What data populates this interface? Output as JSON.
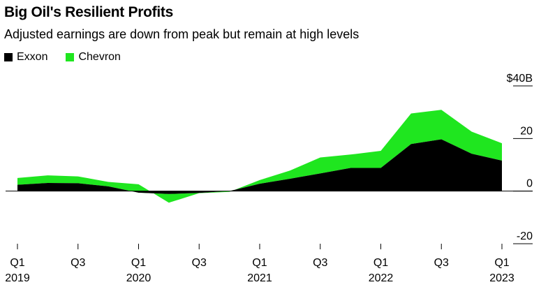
{
  "title": "Big Oil's Resilient Profits",
  "subtitle": "Adjusted earnings are down from peak but remain at high levels",
  "colors": {
    "exxon": "#000000",
    "chevron": "#1fe61f",
    "axis": "#000000",
    "grid": "#000000"
  },
  "chart_data": {
    "type": "area",
    "stacked": true,
    "title": "Big Oil's Resilient Profits",
    "subtitle": "Adjusted earnings are down from peak but remain at high levels",
    "x": [
      "Q1 2019",
      "Q2 2019",
      "Q3 2019",
      "Q4 2019",
      "Q1 2020",
      "Q2 2020",
      "Q3 2020",
      "Q4 2020",
      "Q1 2021",
      "Q2 2021",
      "Q3 2021",
      "Q4 2021",
      "Q1 2022",
      "Q2 2022",
      "Q3 2022",
      "Q4 2022",
      "Q1 2023"
    ],
    "series": [
      {
        "name": "Exxon",
        "values": [
          2.4,
          3.1,
          3.0,
          1.8,
          -0.6,
          -1.1,
          -0.7,
          0.0,
          2.8,
          4.7,
          6.7,
          8.8,
          8.8,
          17.9,
          19.7,
          14.2,
          11.6
        ]
      },
      {
        "name": "Chevron",
        "values": [
          2.6,
          2.9,
          2.6,
          1.7,
          3.2,
          -3.3,
          -0.1,
          -0.3,
          1.4,
          3.1,
          6.1,
          5.1,
          6.5,
          11.6,
          11.2,
          8.4,
          6.6
        ]
      }
    ],
    "y_ticks": [
      {
        "value": 40,
        "label": "$40B"
      },
      {
        "value": 20,
        "label": "20"
      },
      {
        "value": 0,
        "label": "0"
      },
      {
        "value": -20,
        "label": "-20"
      }
    ],
    "x_tick_labels": [
      {
        "index": 0,
        "quarter": "Q1",
        "year": "2019"
      },
      {
        "index": 2,
        "quarter": "Q3",
        "year": ""
      },
      {
        "index": 4,
        "quarter": "Q1",
        "year": "2020"
      },
      {
        "index": 6,
        "quarter": "Q3",
        "year": ""
      },
      {
        "index": 8,
        "quarter": "Q1",
        "year": "2021"
      },
      {
        "index": 10,
        "quarter": "Q3",
        "year": ""
      },
      {
        "index": 12,
        "quarter": "Q1",
        "year": "2022"
      },
      {
        "index": 14,
        "quarter": "Q3",
        "year": ""
      },
      {
        "index": 16,
        "quarter": "Q1",
        "year": "2023"
      }
    ],
    "ylim": [
      -20,
      40
    ],
    "legend": "top-left",
    "xlabel": "",
    "ylabel": ""
  }
}
